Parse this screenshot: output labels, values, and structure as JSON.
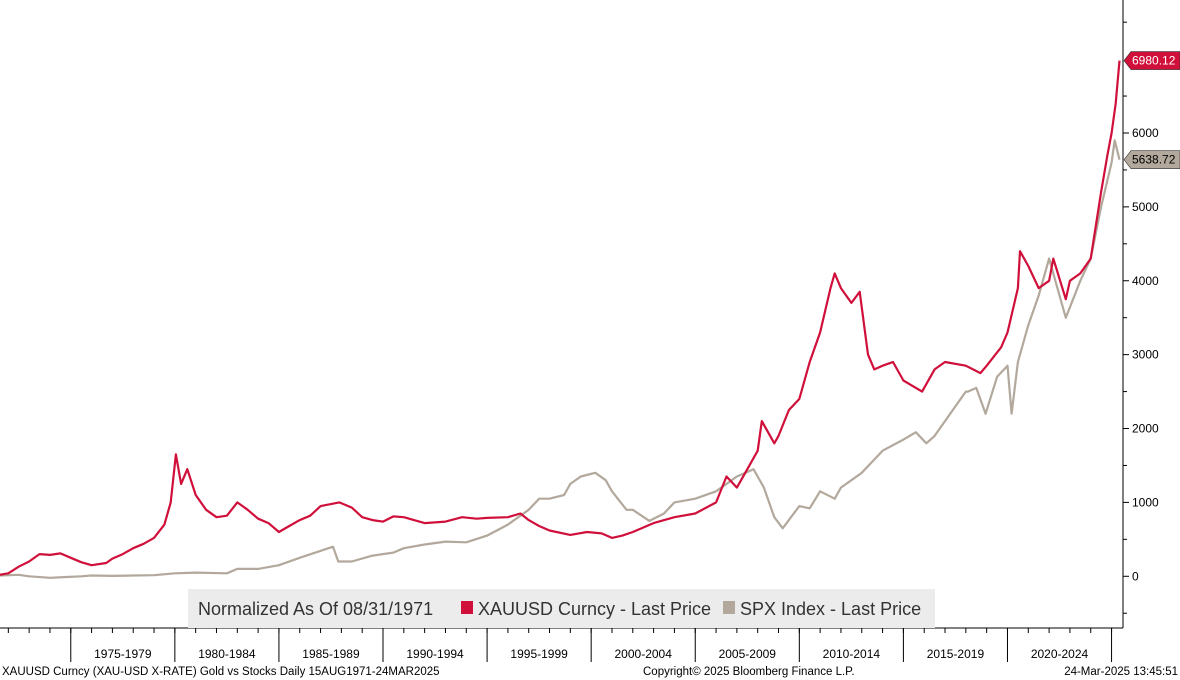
{
  "chart_data": {
    "type": "line",
    "title": "",
    "xlabel": "",
    "ylabel": "",
    "y_ticks": [
      0,
      1000,
      2000,
      3000,
      4000,
      5000,
      6000
    ],
    "ylim": [
      -700,
      7800
    ],
    "xlim": [
      1971.6,
      2025.55
    ],
    "grid": false,
    "legend_position": "bottom-center",
    "x_period_labels": [
      {
        "label": "1975-1979",
        "from": 1975,
        "to": 1980
      },
      {
        "label": "1980-1984",
        "from": 1980,
        "to": 1985
      },
      {
        "label": "1985-1989",
        "from": 1985,
        "to": 1990
      },
      {
        "label": "1990-1994",
        "from": 1990,
        "to": 1995
      },
      {
        "label": "1995-1999",
        "from": 1995,
        "to": 2000
      },
      {
        "label": "2000-2004",
        "from": 2000,
        "to": 2005
      },
      {
        "label": "2005-2009",
        "from": 2005,
        "to": 2010
      },
      {
        "label": "2010-2014",
        "from": 2010,
        "to": 2015
      },
      {
        "label": "2015-2019",
        "from": 2015,
        "to": 2020
      },
      {
        "label": "2020-2024",
        "from": 2020,
        "to": 2025
      }
    ],
    "legend_prefix": "Normalized As Of 08/31/1971",
    "series": [
      {
        "name": "XAUUSD Curncy - Last Price",
        "color": "#d0103a",
        "last_value_label": "6980.12",
        "x": [
          1971.6,
          1972.0,
          1972.5,
          1973.0,
          1973.5,
          1974.0,
          1974.5,
          1975.0,
          1975.5,
          1976.0,
          1976.7,
          1977.0,
          1977.5,
          1978.0,
          1978.5,
          1979.0,
          1979.5,
          1979.8,
          1980.05,
          1980.3,
          1980.6,
          1981.0,
          1981.5,
          1982.0,
          1982.5,
          1983.0,
          1983.5,
          1984.0,
          1984.5,
          1985.0,
          1985.5,
          1986.0,
          1986.5,
          1987.0,
          1987.9,
          1988.5,
          1989.0,
          1989.5,
          1990.0,
          1990.5,
          1991.0,
          1992.0,
          1993.0,
          1993.8,
          1994.5,
          1995.0,
          1996.0,
          1996.6,
          1997.0,
          1997.5,
          1998.0,
          1999.0,
          1999.8,
          2000.5,
          2001.0,
          2001.5,
          2002.0,
          2003.0,
          2004.0,
          2005.0,
          2006.0,
          2006.5,
          2007.0,
          2007.5,
          2008.0,
          2008.2,
          2008.8,
          2009.0,
          2009.5,
          2010.0,
          2010.5,
          2011.0,
          2011.5,
          2011.7,
          2012.0,
          2012.5,
          2012.9,
          2013.3,
          2013.6,
          2014.0,
          2014.5,
          2015.0,
          2015.9,
          2016.5,
          2017.0,
          2018.0,
          2018.7,
          2019.0,
          2019.7,
          2020.0,
          2020.5,
          2020.6,
          2021.0,
          2021.5,
          2022.0,
          2022.2,
          2022.8,
          2023.0,
          2023.5,
          2024.0,
          2024.5,
          2024.8,
          2025.0,
          2025.2,
          2025.38
        ],
        "y": [
          20,
          40,
          130,
          200,
          300,
          290,
          310,
          250,
          190,
          150,
          180,
          240,
          300,
          380,
          440,
          520,
          700,
          1000,
          1650,
          1250,
          1450,
          1100,
          900,
          800,
          820,
          1000,
          900,
          780,
          720,
          600,
          680,
          760,
          820,
          950,
          1000,
          930,
          800,
          760,
          740,
          810,
          800,
          720,
          740,
          800,
          780,
          790,
          800,
          850,
          760,
          680,
          620,
          560,
          600,
          580,
          520,
          550,
          600,
          720,
          800,
          850,
          1000,
          1350,
          1200,
          1450,
          1700,
          2100,
          1800,
          1900,
          2250,
          2400,
          2900,
          3300,
          3900,
          4100,
          3900,
          3700,
          3850,
          3000,
          2800,
          2850,
          2900,
          2650,
          2500,
          2800,
          2900,
          2850,
          2750,
          2850,
          3100,
          3300,
          3900,
          4400,
          4200,
          3900,
          4000,
          4300,
          3750,
          4000,
          4100,
          4300,
          5200,
          5700,
          6000,
          6400,
          6980
        ]
      },
      {
        "name": "SPX Index - Last Price",
        "color": "#b2a89c",
        "last_value_label": "5638.72",
        "x": [
          1971.6,
          1972.5,
          1973.0,
          1974.0,
          1974.8,
          1975.5,
          1976.0,
          1977.0,
          1978.0,
          1979.0,
          1980.0,
          1981.0,
          1982.5,
          1983.0,
          1984.0,
          1985.0,
          1986.0,
          1987.6,
          1987.85,
          1988.5,
          1989.5,
          1990.5,
          1991.0,
          1992.0,
          1993.0,
          1994.0,
          1995.0,
          1996.0,
          1997.0,
          1997.5,
          1998.0,
          1998.7,
          1999.0,
          1999.5,
          2000.2,
          2000.7,
          2001.0,
          2001.7,
          2002.0,
          2002.8,
          2003.5,
          2004.0,
          2005.0,
          2006.0,
          2007.0,
          2007.8,
          2008.3,
          2008.8,
          2009.2,
          2009.6,
          2010.0,
          2010.5,
          2011.0,
          2011.7,
          2012.0,
          2013.0,
          2014.0,
          2015.0,
          2015.6,
          2016.1,
          2016.5,
          2017.0,
          2018.0,
          2018.1,
          2018.5,
          2018.95,
          2019.5,
          2020.0,
          2020.2,
          2020.5,
          2021.0,
          2021.5,
          2022.0,
          2022.5,
          2022.8,
          2023.5,
          2024.0,
          2024.5,
          2025.0,
          2025.15,
          2025.38
        ],
        "y": [
          10,
          20,
          0,
          -20,
          -10,
          0,
          10,
          5,
          10,
          15,
          40,
          50,
          40,
          100,
          100,
          150,
          250,
          400,
          200,
          200,
          280,
          320,
          380,
          430,
          470,
          460,
          550,
          700,
          900,
          1050,
          1050,
          1100,
          1250,
          1350,
          1400,
          1300,
          1150,
          900,
          900,
          750,
          850,
          1000,
          1050,
          1150,
          1350,
          1450,
          1200,
          800,
          650,
          800,
          950,
          920,
          1150,
          1050,
          1200,
          1400,
          1700,
          1850,
          1950,
          1800,
          1900,
          2100,
          2500,
          2500,
          2550,
          2200,
          2700,
          2850,
          2200,
          2900,
          3400,
          3800,
          4300,
          3800,
          3500,
          4000,
          4300,
          5000,
          5600,
          5900,
          5639
        ]
      }
    ]
  },
  "footer": {
    "left": "XAUUSD Curncy (XAU-USD X-RATE) Gold vs Stocks  Daily 15AUG1971-24MAR2025",
    "center": "Copyright© 2025 Bloomberg Finance L.P.",
    "right": "24-Mar-2025 13:45:51"
  }
}
